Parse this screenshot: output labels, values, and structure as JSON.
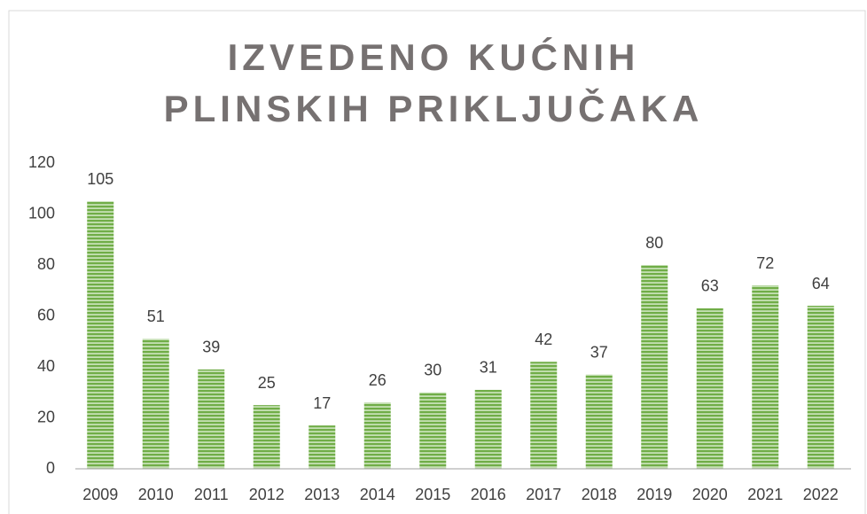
{
  "chart_data": {
    "type": "bar",
    "title": "IZVEDENO KUĆNIH PLINSKIH PRIKLJUČAKA",
    "categories": [
      "2009",
      "2010",
      "2011",
      "2012",
      "2013",
      "2014",
      "2015",
      "2016",
      "2017",
      "2018",
      "2019",
      "2020",
      "2021",
      "2022"
    ],
    "values": [
      105,
      51,
      39,
      25,
      17,
      26,
      30,
      31,
      42,
      37,
      80,
      63,
      72,
      64
    ],
    "color": "#70ad47",
    "ylim": [
      0,
      120
    ],
    "yticks": [
      0,
      20,
      40,
      60,
      80,
      100,
      120
    ],
    "grid": false
  }
}
